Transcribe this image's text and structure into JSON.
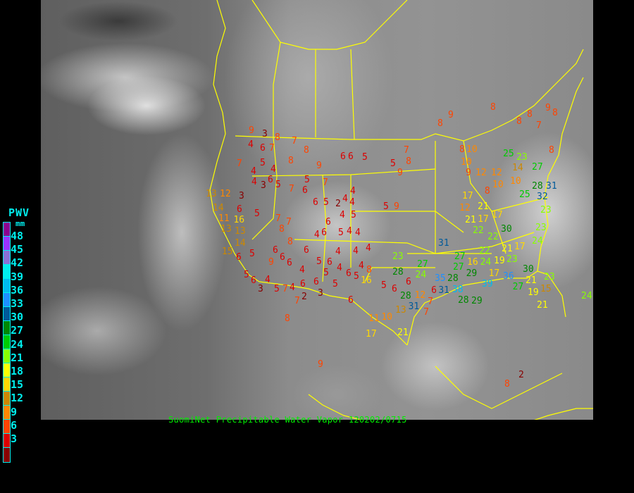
{
  "legend": {
    "title": "PWV",
    "unit": "mm",
    "ticks": [
      "48",
      "45",
      "42",
      "39",
      "36",
      "33",
      "30",
      "27",
      "24",
      "21",
      "18",
      "15",
      "12",
      "9",
      "6",
      "3"
    ],
    "colors": [
      "#8b0090",
      "#9933ff",
      "#8a70d6",
      "#00eeee",
      "#00bbee",
      "#1e90ff",
      "#005a9a",
      "#008800",
      "#00cc00",
      "#88ff00",
      "#ffff00",
      "#ffd700",
      "#cc8800",
      "#ff8800",
      "#ff4400",
      "#dd0000",
      "#880000"
    ]
  },
  "caption": "SuomiNet Precipitable Water Vapor 120202/0715",
  "border_color": "#ffff00",
  "map": {
    "stations": [
      3,
      9,
      8,
      4,
      6,
      7,
      7,
      8,
      8,
      9,
      6,
      6,
      5,
      7,
      5,
      4,
      4,
      4,
      6,
      5,
      3,
      7,
      5,
      6,
      7,
      6,
      5,
      2,
      4,
      4,
      4,
      4,
      5,
      6,
      6,
      4,
      5,
      4,
      4,
      13,
      12,
      3,
      6,
      5,
      14,
      11,
      16,
      7,
      8,
      7,
      8,
      6,
      6,
      4,
      4,
      4,
      13,
      13,
      14,
      15,
      6,
      5,
      9,
      6,
      6,
      4,
      5,
      6,
      4,
      4,
      5,
      6,
      5,
      6,
      5,
      3,
      4,
      5,
      7,
      4,
      6,
      2,
      6,
      3,
      5,
      6,
      8,
      16,
      5,
      6,
      6,
      5,
      9,
      5,
      9,
      7,
      8,
      8,
      9,
      8,
      10,
      10,
      9,
      12,
      12,
      14,
      10,
      10,
      8,
      17,
      12,
      21,
      21,
      17,
      17,
      22,
      22,
      30,
      28,
      25,
      31,
      32,
      23,
      23,
      24,
      17,
      21,
      23,
      22,
      24,
      16,
      19,
      17,
      27,
      27,
      31,
      29,
      28,
      35,
      38,
      31,
      28,
      29,
      39,
      36,
      27,
      30,
      23,
      15,
      19,
      21,
      23,
      28,
      28,
      31,
      12,
      13,
      21,
      27,
      24,
      6,
      7,
      7,
      8,
      8,
      7,
      8,
      9,
      8,
      8,
      27,
      25,
      23,
      21,
      24,
      10,
      11,
      17,
      8,
      2,
      9,
      8,
      7
    ]
  }
}
